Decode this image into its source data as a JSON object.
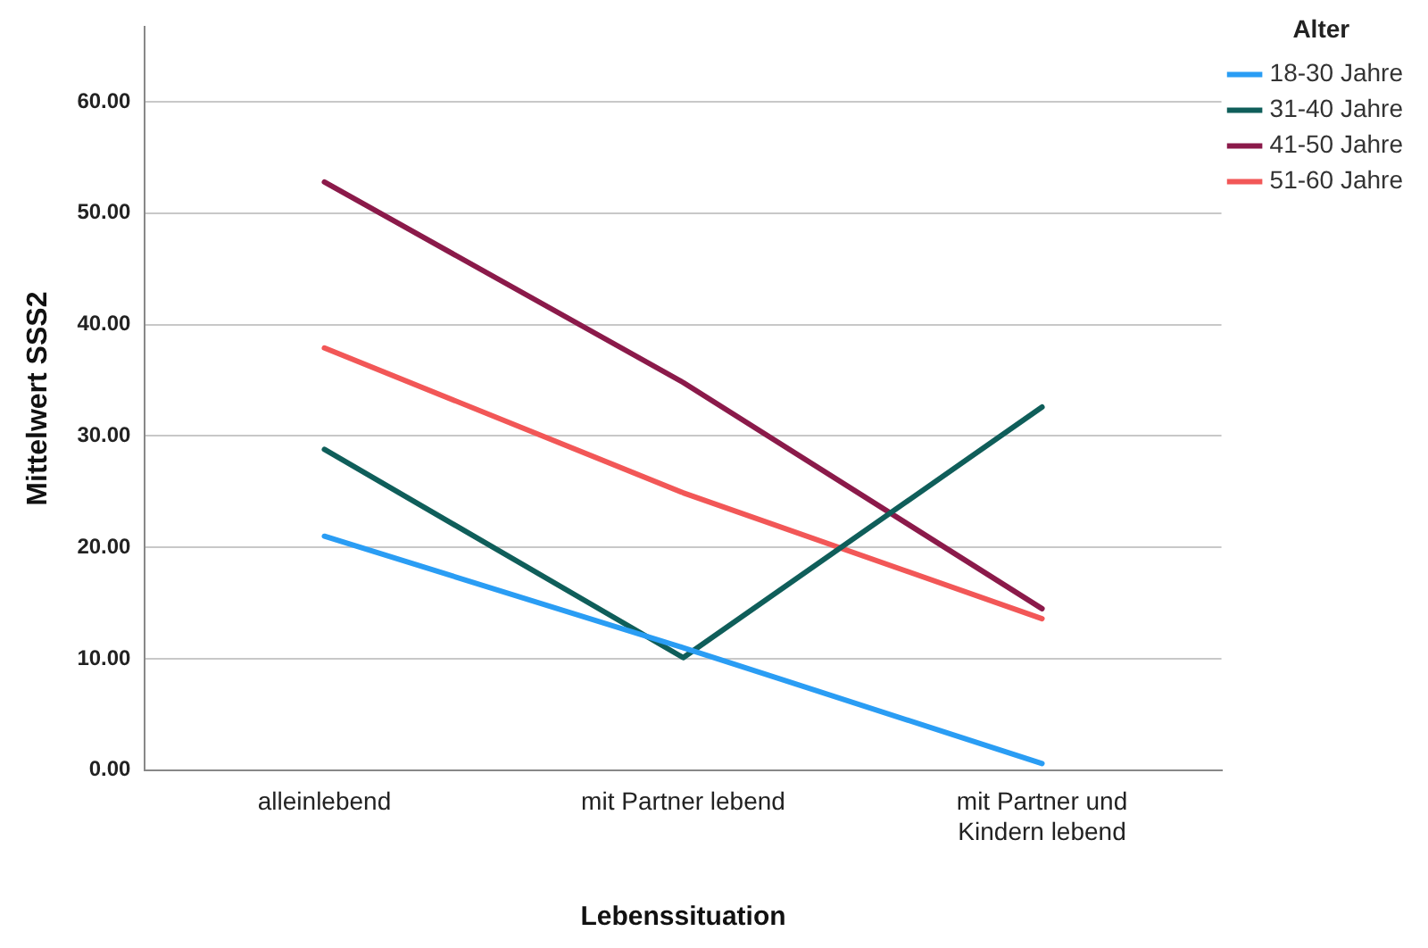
{
  "chart_data": {
    "type": "line",
    "xlabel": "Lebenssituation",
    "ylabel": "Mittelwert SSS2",
    "legend_title": "Alter",
    "legend": "top right",
    "grid": "y",
    "marker": "none",
    "line_style": "solid",
    "categories": [
      "alleinlebend",
      "mit Partner lebend",
      "mit Partner und\nKindern lebend"
    ],
    "ylim": [
      0,
      66.7
    ],
    "yticks": [
      {
        "value": 0,
        "label": "0.00"
      },
      {
        "value": 10,
        "label": "10.00"
      },
      {
        "value": 20,
        "label": "20.00"
      },
      {
        "value": 30,
        "label": "30.00"
      },
      {
        "value": 40,
        "label": "40.00"
      },
      {
        "value": 50,
        "label": "50.00"
      },
      {
        "value": 60,
        "label": "60.00"
      }
    ],
    "series": [
      {
        "name": "18-30 Jahre",
        "color": "#2a9df4",
        "values": [
          21.0,
          11.0,
          0.6
        ]
      },
      {
        "name": "31-40 Jahre",
        "color": "#0f5e5a",
        "values": [
          28.8,
          10.1,
          32.6
        ]
      },
      {
        "name": "41-50 Jahre",
        "color": "#8b1a4a",
        "values": [
          52.8,
          34.8,
          14.5
        ]
      },
      {
        "name": "51-60 Jahre",
        "color": "#f25757",
        "values": [
          37.9,
          24.9,
          13.6
        ]
      }
    ]
  }
}
